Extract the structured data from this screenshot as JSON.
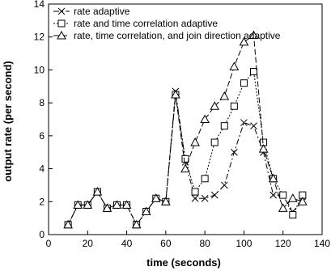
{
  "chart_data": {
    "type": "line",
    "title": "",
    "xlabel": "time (seconds)",
    "ylabel": "output rate (per second)",
    "xlim": [
      0,
      140
    ],
    "ylim": [
      0,
      14
    ],
    "xticks": [
      "0",
      "20",
      "40",
      "60",
      "80",
      "100",
      "120",
      "140"
    ],
    "yticks": [
      "0",
      "2",
      "4",
      "6",
      "8",
      "10",
      "12",
      "14"
    ],
    "grid": false,
    "legend_position": "top-left",
    "series": [
      {
        "name": "rate adaptive",
        "marker": "x",
        "dash": "dash-dot",
        "points": [
          [
            10,
            0.6
          ],
          [
            15,
            1.8
          ],
          [
            20,
            1.8
          ],
          [
            25,
            2.6
          ],
          [
            30,
            1.6
          ],
          [
            35,
            1.8
          ],
          [
            40,
            1.8
          ],
          [
            45,
            0.6
          ],
          [
            50,
            1.4
          ],
          [
            55,
            2.2
          ],
          [
            60,
            2.0
          ],
          [
            65,
            8.7
          ],
          [
            70,
            4.4
          ],
          [
            75,
            2.2
          ],
          [
            80,
            2.2
          ],
          [
            85,
            2.4
          ],
          [
            90,
            3.0
          ],
          [
            95,
            5.0
          ],
          [
            100,
            6.8
          ],
          [
            105,
            6.6
          ],
          [
            110,
            5.0
          ],
          [
            115,
            2.4
          ],
          [
            120,
            2.4
          ],
          [
            125,
            1.4
          ],
          [
            130,
            2.0
          ]
        ]
      },
      {
        "name": "rate and time correlation adaptive",
        "marker": "square",
        "dash": "dot",
        "points": [
          [
            10,
            0.6
          ],
          [
            15,
            1.8
          ],
          [
            20,
            1.8
          ],
          [
            25,
            2.6
          ],
          [
            30,
            1.6
          ],
          [
            35,
            1.8
          ],
          [
            40,
            1.8
          ],
          [
            45,
            0.6
          ],
          [
            50,
            1.4
          ],
          [
            55,
            2.2
          ],
          [
            60,
            2.0
          ],
          [
            65,
            8.5
          ],
          [
            70,
            4.6
          ],
          [
            75,
            2.6
          ],
          [
            80,
            3.4
          ],
          [
            85,
            5.6
          ],
          [
            90,
            6.6
          ],
          [
            95,
            7.8
          ],
          [
            100,
            9.2
          ],
          [
            105,
            9.9
          ],
          [
            110,
            5.6
          ],
          [
            115,
            3.4
          ],
          [
            120,
            2.4
          ],
          [
            125,
            1.2
          ],
          [
            130,
            2.4
          ]
        ]
      },
      {
        "name": "rate, time correlation, and join direction adaptive",
        "marker": "triangle",
        "dash": "long-dash",
        "points": [
          [
            10,
            0.6
          ],
          [
            15,
            1.8
          ],
          [
            20,
            1.8
          ],
          [
            25,
            2.6
          ],
          [
            30,
            1.6
          ],
          [
            35,
            1.8
          ],
          [
            40,
            1.8
          ],
          [
            45,
            0.6
          ],
          [
            50,
            1.4
          ],
          [
            55,
            2.2
          ],
          [
            60,
            2.0
          ],
          [
            65,
            8.5
          ],
          [
            70,
            4.0
          ],
          [
            75,
            5.6
          ],
          [
            80,
            7.0
          ],
          [
            85,
            7.8
          ],
          [
            90,
            8.4
          ],
          [
            95,
            10.2
          ],
          [
            100,
            11.7
          ],
          [
            105,
            12.1
          ],
          [
            110,
            5.2
          ],
          [
            115,
            3.4
          ],
          [
            120,
            1.6
          ],
          [
            125,
            2.2
          ],
          [
            130,
            2.0
          ]
        ]
      }
    ]
  }
}
